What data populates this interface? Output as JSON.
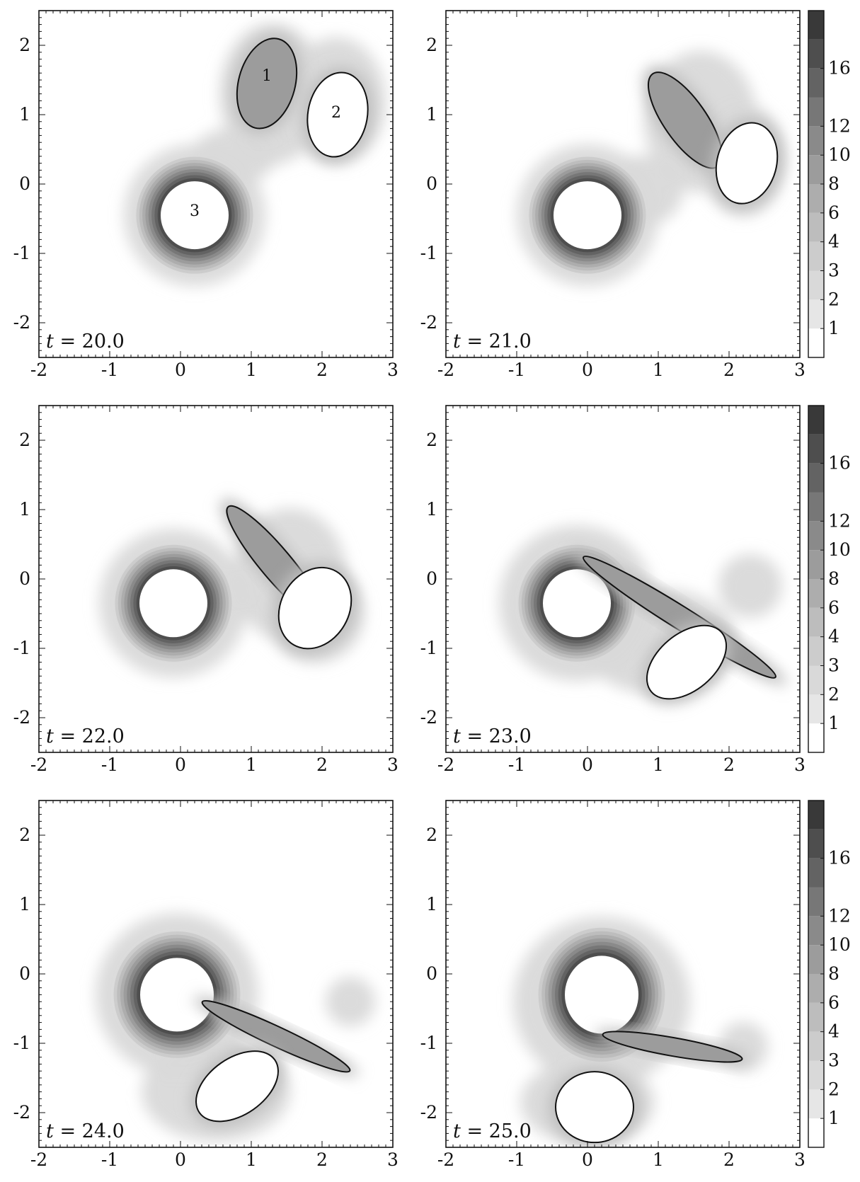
{
  "chart_data": {
    "type": "contour",
    "grid": false,
    "xlim": [
      -2,
      3
    ],
    "ylim": [
      -2.5,
      2.5
    ],
    "x_ticks": [
      "-2",
      "-1",
      "0",
      "1",
      "2",
      "3"
    ],
    "y_ticks": [
      "2",
      "1",
      "0",
      "-1",
      "-2"
    ],
    "colorbar": {
      "levels": [
        0,
        1,
        2,
        3,
        4,
        6,
        8,
        10,
        12,
        14,
        16,
        18
      ],
      "tick_labels": [
        "1",
        "2",
        "3",
        "4",
        "6",
        "8",
        "10",
        "12",
        "16"
      ],
      "colors": [
        "#ffffff",
        "#e6e6e6",
        "#d9d9d9",
        "#cccccc",
        "#bdbdbd",
        "#adadad",
        "#9c9c9c",
        "#8a8a8a",
        "#777777",
        "#636363",
        "#4e4e4e",
        "#393939"
      ]
    },
    "panels": [
      {
        "time_label": "t = 20.0",
        "vortex_labels": [
          {
            "text": "1",
            "x": 1.22,
            "y": 1.55
          },
          {
            "text": "2",
            "x": 2.2,
            "y": 1.02
          },
          {
            "text": "3",
            "x": 0.2,
            "y": -0.4
          }
        ],
        "vortices": [
          {
            "shape": "ellipse",
            "cx": 0.2,
            "cy": -0.45,
            "rx": 0.48,
            "ry": 0.48,
            "angle": 0,
            "filled": false,
            "ring": true
          },
          {
            "shape": "ellipse",
            "cx": 1.22,
            "cy": 1.45,
            "rx": 0.4,
            "ry": 0.65,
            "angle": -15,
            "filled": true
          },
          {
            "shape": "ellipse",
            "cx": 2.22,
            "cy": 1.0,
            "rx": 0.42,
            "ry": 0.6,
            "angle": -10,
            "filled": false
          }
        ],
        "halo": [
          {
            "cx": 0.2,
            "cy": -0.45,
            "rx": 1.0,
            "ry": 1.0
          },
          {
            "cx": 1.3,
            "cy": 1.3,
            "rx": 0.75,
            "ry": 1.0
          },
          {
            "cx": 2.2,
            "cy": 1.2,
            "rx": 0.7,
            "ry": 0.9
          },
          {
            "cx": 0.75,
            "cy": 0.4,
            "rx": 0.6,
            "ry": 0.4
          }
        ]
      },
      {
        "time_label": "t = 21.0",
        "vortices": [
          {
            "shape": "ellipse",
            "cx": 0.0,
            "cy": -0.45,
            "rx": 0.48,
            "ry": 0.48,
            "angle": 0,
            "filled": false,
            "ring": true
          },
          {
            "shape": "ellipse",
            "cx": 1.38,
            "cy": 0.92,
            "rx": 0.3,
            "ry": 0.8,
            "angle": 35,
            "filled": true
          },
          {
            "shape": "ellipse",
            "cx": 2.25,
            "cy": 0.3,
            "rx": 0.42,
            "ry": 0.58,
            "angle": -15,
            "filled": false
          }
        ],
        "halo": [
          {
            "cx": 0.0,
            "cy": -0.45,
            "rx": 1.0,
            "ry": 1.0
          },
          {
            "cx": 1.6,
            "cy": 0.9,
            "rx": 0.8,
            "ry": 1.0
          },
          {
            "cx": 2.2,
            "cy": 0.35,
            "rx": 0.6,
            "ry": 0.8
          },
          {
            "cx": 0.75,
            "cy": -0.1,
            "rx": 0.6,
            "ry": 0.5
          }
        ]
      },
      {
        "time_label": "t = 22.0",
        "vortices": [
          {
            "shape": "ellipse",
            "cx": -0.1,
            "cy": -0.35,
            "rx": 0.48,
            "ry": 0.48,
            "angle": 0,
            "filled": false,
            "ring": true
          },
          {
            "shape": "ellipse",
            "cx": 1.35,
            "cy": 0.22,
            "rx": 0.22,
            "ry": 1.05,
            "angle": 40,
            "filled": true
          },
          {
            "shape": "ellipse",
            "cx": 1.9,
            "cy": -0.42,
            "rx": 0.48,
            "ry": 0.6,
            "angle": -30,
            "filled": false
          }
        ],
        "halo": [
          {
            "cx": -0.1,
            "cy": -0.35,
            "rx": 1.05,
            "ry": 1.05
          },
          {
            "cx": 1.55,
            "cy": 0.05,
            "rx": 0.8,
            "ry": 0.95
          },
          {
            "cx": 1.9,
            "cy": -0.5,
            "rx": 0.7,
            "ry": 0.7
          }
        ]
      },
      {
        "time_label": "t = 23.0",
        "vortices": [
          {
            "shape": "ellipse",
            "cx": -0.15,
            "cy": -0.35,
            "rx": 0.48,
            "ry": 0.48,
            "angle": 0,
            "filled": false,
            "ring": true
          },
          {
            "shape": "ellipse",
            "cx": 1.3,
            "cy": -0.55,
            "rx": 0.16,
            "ry": 1.6,
            "angle": 58,
            "filled": true
          },
          {
            "shape": "ellipse",
            "cx": 1.4,
            "cy": -1.2,
            "rx": 0.4,
            "ry": 0.65,
            "angle": -50,
            "filled": false
          }
        ],
        "halo": [
          {
            "cx": -0.15,
            "cy": -0.35,
            "rx": 1.1,
            "ry": 1.1
          },
          {
            "cx": 1.0,
            "cy": -0.9,
            "rx": 1.1,
            "ry": 0.75
          },
          {
            "cx": 2.3,
            "cy": -0.1,
            "rx": 0.45,
            "ry": 0.45
          }
        ]
      },
      {
        "time_label": "t = 24.0",
        "vortices": [
          {
            "shape": "ellipse",
            "cx": -0.05,
            "cy": -0.3,
            "rx": 0.52,
            "ry": 0.52,
            "angle": 0,
            "filled": false,
            "ring": true
          },
          {
            "shape": "ellipse",
            "cx": 1.35,
            "cy": -0.9,
            "rx": 0.14,
            "ry": 1.15,
            "angle": 65,
            "filled": true
          },
          {
            "shape": "ellipse",
            "cx": 0.8,
            "cy": -1.62,
            "rx": 0.4,
            "ry": 0.65,
            "angle": -55,
            "filled": false
          }
        ],
        "halo": [
          {
            "cx": -0.05,
            "cy": -0.3,
            "rx": 1.15,
            "ry": 1.15
          },
          {
            "cx": 0.5,
            "cy": -1.7,
            "rx": 1.05,
            "ry": 0.7
          },
          {
            "cx": 2.4,
            "cy": -0.4,
            "rx": 0.35,
            "ry": 0.35
          }
        ]
      },
      {
        "time_label": "t = 25.0",
        "vortices": [
          {
            "shape": "ellipse",
            "cx": 0.2,
            "cy": -0.3,
            "rx": 0.52,
            "ry": 0.55,
            "angle": 0,
            "filled": false,
            "ring": true
          },
          {
            "shape": "ellipse",
            "cx": 1.2,
            "cy": -1.05,
            "rx": 0.13,
            "ry": 1.0,
            "angle": 80,
            "filled": true
          },
          {
            "shape": "ellipse",
            "cx": 0.1,
            "cy": -1.92,
            "rx": 0.55,
            "ry": 0.5,
            "angle": 0,
            "filled": false
          }
        ],
        "halo": [
          {
            "cx": 0.2,
            "cy": -0.4,
            "rx": 1.25,
            "ry": 1.2
          },
          {
            "cx": 0.0,
            "cy": -1.85,
            "rx": 0.95,
            "ry": 0.6
          },
          {
            "cx": 2.2,
            "cy": -1.05,
            "rx": 0.35,
            "ry": 0.35
          }
        ]
      }
    ]
  }
}
